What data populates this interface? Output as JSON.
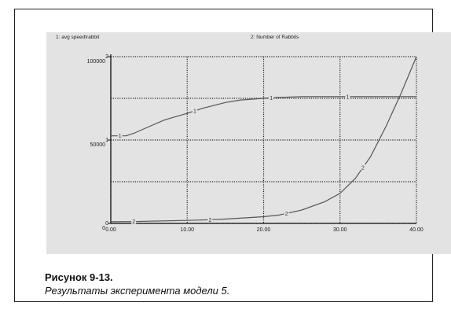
{
  "caption": {
    "title": "Рисунок 9-13.",
    "text": "Результаты эксперимента модели 5."
  },
  "chart_data": {
    "type": "line",
    "header_left": "1: avg speed\\rabbit",
    "header_right": "2: Number of Rabbits",
    "x_ticks": [
      "0.00",
      "10.00",
      "20.00",
      "30.00",
      "40.00"
    ],
    "xlim": [
      0,
      40
    ],
    "y_axis_labels": [
      {
        "series": "1",
        "label": "2",
        "value": 100000
      },
      {
        "series": "2",
        "label": "100000",
        "value": 100000
      },
      {
        "series": "1",
        "label": "1",
        "value": 50000
      },
      {
        "series": "2",
        "label": "50000",
        "value": 50000
      },
      {
        "series": "1",
        "label": "0",
        "value": 0
      },
      {
        "series": "2",
        "label": "0",
        "value": 0
      }
    ],
    "y_ticks_series1": [
      "0",
      "1",
      "2"
    ],
    "y_ticks_series2": [
      "0",
      "50000",
      "100000"
    ],
    "ylim_series1": [
      0,
      2
    ],
    "ylim_series2": [
      0,
      100000
    ],
    "series": [
      {
        "name": "1: avg speed\\rabbit",
        "marker": "1",
        "color": "#555555",
        "axis": "series1",
        "x": [
          0,
          2,
          3,
          5,
          7,
          10,
          12,
          15,
          17,
          20,
          22,
          25,
          28,
          30,
          33,
          35,
          38,
          40
        ],
        "y": [
          1.05,
          1.05,
          1.08,
          1.16,
          1.24,
          1.32,
          1.38,
          1.45,
          1.48,
          1.5,
          1.51,
          1.52,
          1.52,
          1.52,
          1.52,
          1.52,
          1.52,
          1.52
        ],
        "marker_x": [
          1.2,
          11,
          21,
          31
        ]
      },
      {
        "name": "2: Number of Rabbits",
        "marker": "2",
        "color": "#555555",
        "axis": "series2",
        "x": [
          0,
          3,
          5,
          10,
          13,
          15,
          20,
          22,
          25,
          28,
          30,
          32,
          34,
          36,
          38,
          40
        ],
        "y": [
          1000,
          1100,
          1300,
          1800,
          2200,
          2600,
          4000,
          5000,
          8000,
          13000,
          18000,
          27000,
          40000,
          58000,
          78000,
          100000
        ],
        "marker_x": [
          3,
          13,
          23,
          33
        ]
      }
    ],
    "grid": "dotted"
  }
}
